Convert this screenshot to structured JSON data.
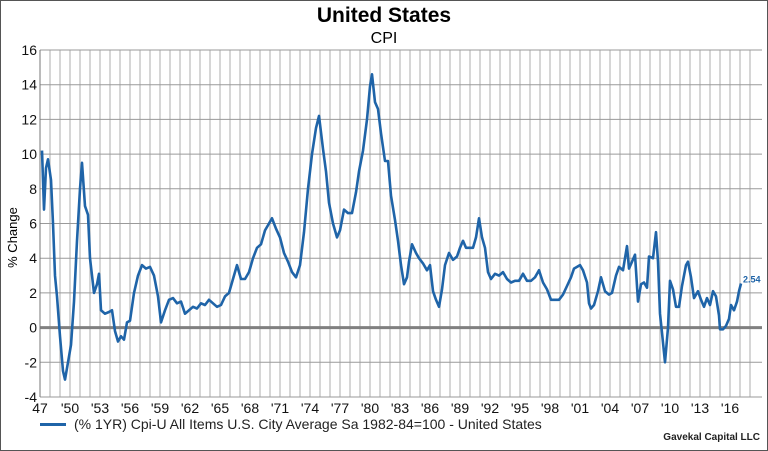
{
  "chart_data": {
    "type": "line",
    "title": "United States",
    "subtitle": "CPI",
    "ylabel": "% Change",
    "xlabel": "",
    "ylim": [
      -4,
      16
    ],
    "yticks": [
      "16",
      "14",
      "12",
      "10",
      "8",
      "6",
      "4",
      "2",
      "0",
      "-2",
      "-4"
    ],
    "xtick_labels": [
      "47",
      "'50",
      "'53",
      "'56",
      "'59",
      "'62",
      "'65",
      "'68",
      "'71",
      "'74",
      "'77",
      "'80",
      "'83",
      "'86",
      "'89",
      "'92",
      "'95",
      "'98",
      "'01",
      "'04",
      "'07",
      "'10",
      "'13",
      "'16"
    ],
    "grid": true,
    "legend_position": "bottom-left",
    "series": [
      {
        "name": "(% 1YR) Cpi-U All Items U.S. City Average Sa 1982-84=100 - United States",
        "color": "#1f64a8",
        "last_value_label": "2.54",
        "points": [
          [
            1947.2,
            10.2
          ],
          [
            1947.4,
            6.8
          ],
          [
            1947.6,
            9.2
          ],
          [
            1947.8,
            9.7
          ],
          [
            1948.1,
            8.5
          ],
          [
            1948.3,
            6.0
          ],
          [
            1948.5,
            3.0
          ],
          [
            1948.7,
            1.8
          ],
          [
            1949.0,
            -0.5
          ],
          [
            1949.3,
            -2.5
          ],
          [
            1949.5,
            -3.0
          ],
          [
            1949.8,
            -2.0
          ],
          [
            1950.1,
            -1.0
          ],
          [
            1950.4,
            1.5
          ],
          [
            1950.7,
            5.0
          ],
          [
            1951.0,
            8.0
          ],
          [
            1951.2,
            9.5
          ],
          [
            1951.5,
            7.0
          ],
          [
            1951.8,
            6.5
          ],
          [
            1952.0,
            4.0
          ],
          [
            1952.4,
            2.0
          ],
          [
            1952.7,
            2.5
          ],
          [
            1952.9,
            3.1
          ],
          [
            1953.1,
            1.0
          ],
          [
            1953.5,
            0.8
          ],
          [
            1953.9,
            0.9
          ],
          [
            1954.2,
            1.0
          ],
          [
            1954.5,
            -0.2
          ],
          [
            1954.8,
            -0.8
          ],
          [
            1955.1,
            -0.5
          ],
          [
            1955.4,
            -0.7
          ],
          [
            1955.7,
            0.3
          ],
          [
            1956.0,
            0.4
          ],
          [
            1956.4,
            2.0
          ],
          [
            1956.8,
            3.0
          ],
          [
            1957.2,
            3.6
          ],
          [
            1957.6,
            3.4
          ],
          [
            1958.0,
            3.5
          ],
          [
            1958.4,
            3.0
          ],
          [
            1958.8,
            1.8
          ],
          [
            1959.1,
            0.3
          ],
          [
            1959.5,
            1.0
          ],
          [
            1959.9,
            1.6
          ],
          [
            1960.3,
            1.7
          ],
          [
            1960.7,
            1.4
          ],
          [
            1961.1,
            1.5
          ],
          [
            1961.5,
            0.8
          ],
          [
            1961.9,
            1.0
          ],
          [
            1962.3,
            1.2
          ],
          [
            1962.7,
            1.1
          ],
          [
            1963.1,
            1.4
          ],
          [
            1963.5,
            1.3
          ],
          [
            1963.9,
            1.6
          ],
          [
            1964.3,
            1.4
          ],
          [
            1964.7,
            1.2
          ],
          [
            1965.1,
            1.3
          ],
          [
            1965.5,
            1.8
          ],
          [
            1965.9,
            2.0
          ],
          [
            1966.3,
            2.8
          ],
          [
            1966.7,
            3.6
          ],
          [
            1967.1,
            2.8
          ],
          [
            1967.5,
            2.8
          ],
          [
            1967.9,
            3.2
          ],
          [
            1968.3,
            4.0
          ],
          [
            1968.7,
            4.6
          ],
          [
            1969.1,
            4.8
          ],
          [
            1969.5,
            5.6
          ],
          [
            1969.9,
            6.0
          ],
          [
            1970.2,
            6.3
          ],
          [
            1970.6,
            5.7
          ],
          [
            1971.0,
            5.2
          ],
          [
            1971.4,
            4.3
          ],
          [
            1971.8,
            3.8
          ],
          [
            1972.2,
            3.2
          ],
          [
            1972.6,
            2.9
          ],
          [
            1973.0,
            3.6
          ],
          [
            1973.4,
            5.5
          ],
          [
            1973.8,
            8.0
          ],
          [
            1974.2,
            10.0
          ],
          [
            1974.6,
            11.5
          ],
          [
            1974.9,
            12.2
          ],
          [
            1975.3,
            10.3
          ],
          [
            1975.6,
            9.0
          ],
          [
            1975.9,
            7.2
          ],
          [
            1976.3,
            6.0
          ],
          [
            1976.7,
            5.2
          ],
          [
            1977.0,
            5.6
          ],
          [
            1977.4,
            6.8
          ],
          [
            1977.8,
            6.6
          ],
          [
            1978.2,
            6.6
          ],
          [
            1978.6,
            7.8
          ],
          [
            1978.9,
            9.0
          ],
          [
            1979.3,
            10.2
          ],
          [
            1979.7,
            12.0
          ],
          [
            1980.0,
            13.9
          ],
          [
            1980.2,
            14.6
          ],
          [
            1980.5,
            13.0
          ],
          [
            1980.8,
            12.6
          ],
          [
            1981.1,
            11.2
          ],
          [
            1981.5,
            9.6
          ],
          [
            1981.8,
            9.6
          ],
          [
            1982.1,
            7.6
          ],
          [
            1982.5,
            6.2
          ],
          [
            1982.8,
            5.0
          ],
          [
            1983.1,
            3.6
          ],
          [
            1983.4,
            2.5
          ],
          [
            1983.7,
            2.9
          ],
          [
            1983.9,
            3.8
          ],
          [
            1984.2,
            4.8
          ],
          [
            1984.6,
            4.3
          ],
          [
            1984.9,
            4.0
          ],
          [
            1985.3,
            3.7
          ],
          [
            1985.7,
            3.3
          ],
          [
            1986.0,
            3.6
          ],
          [
            1986.3,
            2.1
          ],
          [
            1986.6,
            1.6
          ],
          [
            1986.9,
            1.2
          ],
          [
            1987.2,
            2.2
          ],
          [
            1987.5,
            3.6
          ],
          [
            1987.9,
            4.3
          ],
          [
            1988.3,
            3.9
          ],
          [
            1988.7,
            4.1
          ],
          [
            1989.0,
            4.6
          ],
          [
            1989.3,
            5.0
          ],
          [
            1989.6,
            4.6
          ],
          [
            1989.9,
            4.6
          ],
          [
            1990.3,
            4.6
          ],
          [
            1990.6,
            5.2
          ],
          [
            1990.9,
            6.3
          ],
          [
            1991.2,
            5.2
          ],
          [
            1991.5,
            4.6
          ],
          [
            1991.8,
            3.2
          ],
          [
            1992.1,
            2.8
          ],
          [
            1992.5,
            3.1
          ],
          [
            1992.9,
            3.0
          ],
          [
            1993.3,
            3.2
          ],
          [
            1993.7,
            2.8
          ],
          [
            1994.1,
            2.6
          ],
          [
            1994.5,
            2.7
          ],
          [
            1994.9,
            2.7
          ],
          [
            1995.3,
            3.1
          ],
          [
            1995.7,
            2.7
          ],
          [
            1996.1,
            2.7
          ],
          [
            1996.5,
            2.9
          ],
          [
            1996.9,
            3.3
          ],
          [
            1997.3,
            2.6
          ],
          [
            1997.7,
            2.2
          ],
          [
            1998.1,
            1.6
          ],
          [
            1998.5,
            1.6
          ],
          [
            1998.9,
            1.6
          ],
          [
            1999.3,
            1.9
          ],
          [
            1999.7,
            2.4
          ],
          [
            2000.1,
            2.9
          ],
          [
            2000.4,
            3.4
          ],
          [
            2000.7,
            3.5
          ],
          [
            2001.0,
            3.6
          ],
          [
            2001.3,
            3.3
          ],
          [
            2001.7,
            2.6
          ],
          [
            2001.9,
            1.4
          ],
          [
            2002.1,
            1.1
          ],
          [
            2002.4,
            1.3
          ],
          [
            2002.8,
            2.1
          ],
          [
            2003.1,
            2.9
          ],
          [
            2003.5,
            2.1
          ],
          [
            2003.9,
            1.9
          ],
          [
            2004.2,
            2.0
          ],
          [
            2004.6,
            3.0
          ],
          [
            2004.9,
            3.5
          ],
          [
            2005.3,
            3.3
          ],
          [
            2005.7,
            4.7
          ],
          [
            2005.9,
            3.4
          ],
          [
            2006.2,
            3.8
          ],
          [
            2006.5,
            4.2
          ],
          [
            2006.8,
            1.5
          ],
          [
            2007.1,
            2.5
          ],
          [
            2007.4,
            2.6
          ],
          [
            2007.7,
            2.3
          ],
          [
            2007.9,
            4.1
          ],
          [
            2008.3,
            4.0
          ],
          [
            2008.6,
            5.5
          ],
          [
            2008.8,
            3.8
          ],
          [
            2009.0,
            0.8
          ],
          [
            2009.2,
            -0.3
          ],
          [
            2009.5,
            -2.0
          ],
          [
            2009.8,
            0.0
          ],
          [
            2010.0,
            2.7
          ],
          [
            2010.3,
            2.2
          ],
          [
            2010.6,
            1.2
          ],
          [
            2010.9,
            1.2
          ],
          [
            2011.2,
            2.4
          ],
          [
            2011.6,
            3.6
          ],
          [
            2011.8,
            3.8
          ],
          [
            2012.1,
            2.9
          ],
          [
            2012.4,
            1.7
          ],
          [
            2012.8,
            2.1
          ],
          [
            2013.1,
            1.6
          ],
          [
            2013.4,
            1.2
          ],
          [
            2013.7,
            1.7
          ],
          [
            2014.0,
            1.3
          ],
          [
            2014.3,
            2.1
          ],
          [
            2014.6,
            1.8
          ],
          [
            2014.9,
            0.7
          ],
          [
            2015.0,
            -0.1
          ],
          [
            2015.3,
            -0.1
          ],
          [
            2015.6,
            0.1
          ],
          [
            2015.9,
            0.5
          ],
          [
            2016.1,
            1.3
          ],
          [
            2016.4,
            1.0
          ],
          [
            2016.7,
            1.5
          ],
          [
            2016.9,
            2.1
          ],
          [
            2017.1,
            2.54
          ]
        ]
      }
    ]
  },
  "footer": {
    "legend_label": "(% 1YR) Cpi-U All Items U.S. City Average Sa 1982-84=100 - United States",
    "credit": "Gavekal Capital LLC"
  }
}
